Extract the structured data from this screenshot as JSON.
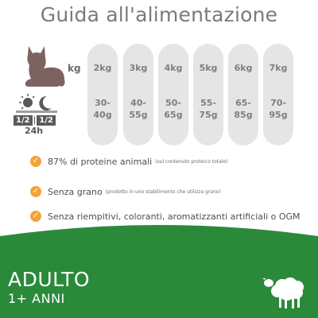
{
  "title": "Guida all'alimentazione",
  "row_labels": {
    "weight_unit": "kg",
    "daily_split": "1/2",
    "daily_split_2": "1/2",
    "hours": "24h"
  },
  "feeding_table": [
    {
      "weight": "2kg",
      "grams": [
        "30-",
        "40g"
      ]
    },
    {
      "weight": "3kg",
      "grams": [
        "40-",
        "55g"
      ]
    },
    {
      "weight": "4kg",
      "grams": [
        "50-",
        "65g"
      ]
    },
    {
      "weight": "5kg",
      "grams": [
        "55-",
        "75g"
      ]
    },
    {
      "weight": "6kg",
      "grams": [
        "65-",
        "85g"
      ]
    },
    {
      "weight": "7kg",
      "grams": [
        "70-",
        "95g"
      ]
    }
  ],
  "benefits": [
    {
      "text": "87% di proteine animali",
      "note": "(sul contenuto proteico totale)"
    },
    {
      "text": "Senza grano",
      "note": "(prodotto in uno stabilimento che utilizza grano)"
    },
    {
      "text": "Senza riempitivi, coloranti, aromatizzanti artificiali o OGM",
      "note": ""
    }
  ],
  "banner": {
    "life_stage": "ADULTO",
    "age": "1+ ANNI"
  },
  "icons": {
    "check": "check-icon",
    "cat": "cat-icon",
    "day_night": "day-night-icon",
    "sheep": "sheep-icon"
  },
  "colors": {
    "accent": "#f4a23a",
    "banner_green": "#2a8a3a",
    "pill_grey": "#e5e5e5",
    "cat_brown": "#7d6360"
  }
}
